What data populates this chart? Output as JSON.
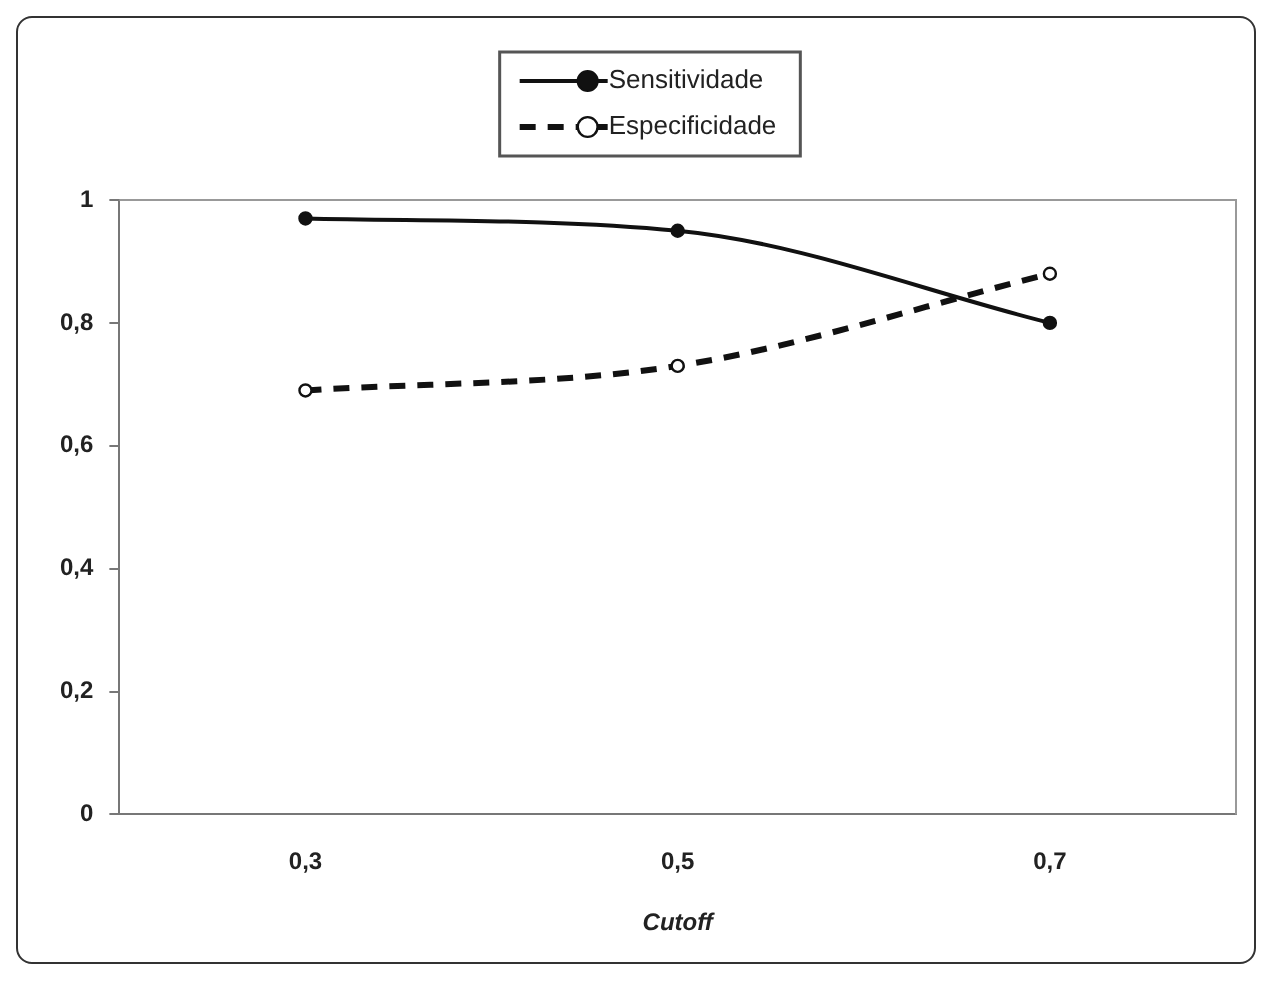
{
  "chart_data": {
    "type": "line",
    "xlabel": "Cutoff",
    "categories": [
      "0,3",
      "0,5",
      "0,7"
    ],
    "series": [
      {
        "name": "Sensitividade",
        "color": "#111111",
        "values": [
          0.97,
          0.95,
          0.8
        ],
        "line_style": "solid"
      },
      {
        "name": "Especificidade",
        "color": "#111111",
        "values": [
          0.69,
          0.73,
          0.88
        ],
        "line_style": "dashed"
      }
    ],
    "ylim": [
      0,
      1
    ],
    "yticks": [
      {
        "value": 0,
        "label": "0"
      },
      {
        "value": 0.2,
        "label": "0,2"
      },
      {
        "value": 0.4,
        "label": "0,4"
      },
      {
        "value": 0.6,
        "label": "0,6"
      },
      {
        "value": 0.8,
        "label": "0,8"
      },
      {
        "value": 1,
        "label": "1"
      }
    ],
    "grid": false,
    "legend": "top",
    "marker": "circle"
  }
}
